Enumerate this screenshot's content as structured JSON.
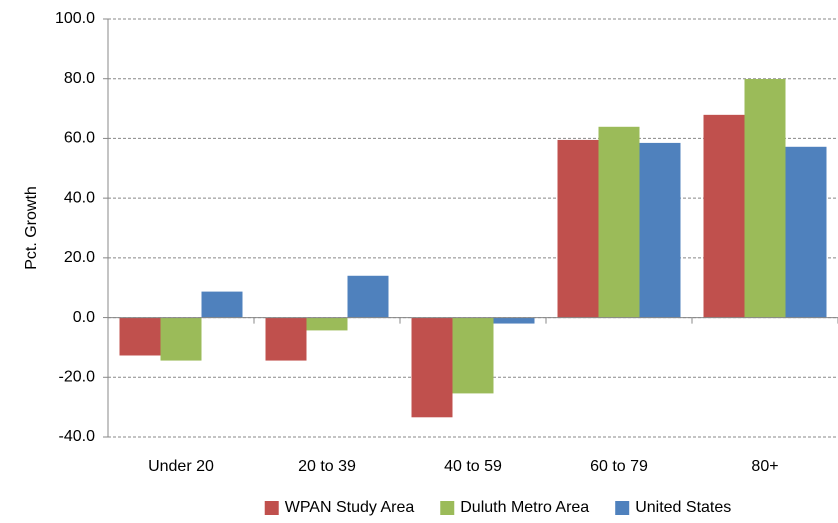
{
  "chart_data": {
    "type": "bar",
    "ylabel": "Pct. Growth",
    "categories": [
      "Under 20",
      "20 to 39",
      "40 to 59",
      "60 to 79",
      "80+"
    ],
    "series": [
      {
        "name": "WPAN Study Area",
        "color": "#c0504d",
        "values": [
          -12.7,
          -14.4,
          -33.4,
          59.5,
          67.9
        ]
      },
      {
        "name": "Duluth Metro Area",
        "color": "#9bbb59",
        "values": [
          -14.4,
          -4.3,
          -25.4,
          63.9,
          79.9
        ]
      },
      {
        "name": "United States",
        "color": "#4f81bd",
        "values": [
          8.7,
          14.0,
          -2.0,
          58.5,
          57.2
        ]
      }
    ],
    "ylim": [
      -40,
      100
    ],
    "yticks": [
      {
        "value": -40,
        "label": "-40.0"
      },
      {
        "value": -20,
        "label": "-20.0"
      },
      {
        "value": 0,
        "label": "0.0"
      },
      {
        "value": 20,
        "label": "20.0"
      },
      {
        "value": 40,
        "label": "40.0"
      },
      {
        "value": 60,
        "label": "60.0"
      },
      {
        "value": 80,
        "label": "80.0"
      },
      {
        "value": 100,
        "label": "100.0"
      }
    ],
    "grid": true,
    "legend": "bottom"
  }
}
